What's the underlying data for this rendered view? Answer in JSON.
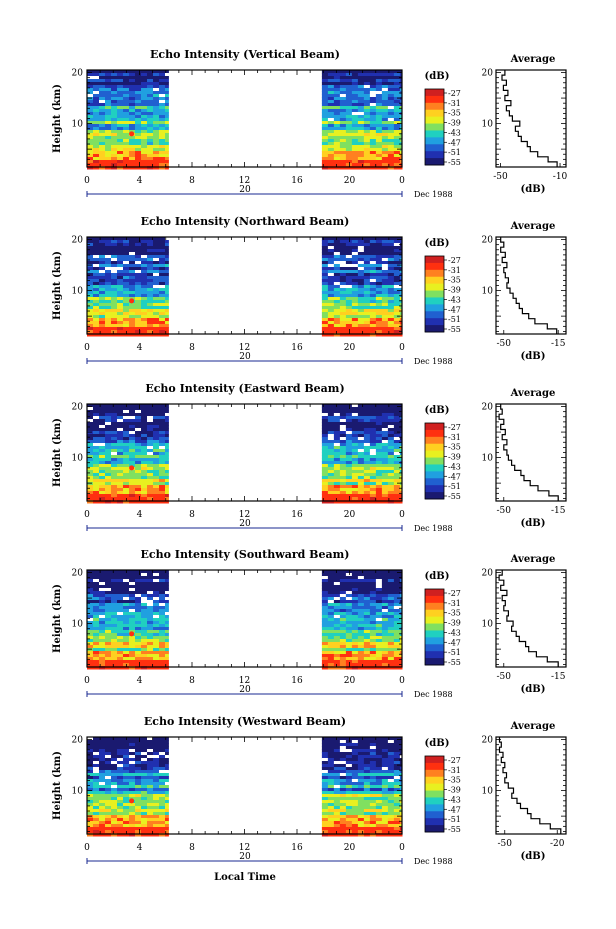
{
  "figure": {
    "xlabel": "Local Time",
    "date_label": "Dec 1988",
    "date_marker": "20",
    "colorbar_unit": "(dB)",
    "colorbar_ticks": [
      "-27",
      "-31",
      "-35",
      "-39",
      "-43",
      "-47",
      "-51",
      "-55"
    ],
    "colormap": [
      "#d02020",
      "#ff3010",
      "#ff8020",
      "#ffd020",
      "#e8f020",
      "#80e060",
      "#20d0c0",
      "#20a0e0",
      "#2060d0",
      "#2030b0",
      "#1a1a70"
    ],
    "missing_data_color": "#ffffff",
    "average_title": "Average",
    "average_xlabel": "(dB)"
  },
  "chart_data": [
    {
      "type": "heatmap",
      "title": "Echo Intensity (Vertical Beam)",
      "ylabel": "Height (km)",
      "xlabel": "Local Time",
      "x_ticks": [
        "0",
        "4",
        "8",
        "12",
        "16",
        "20",
        "0"
      ],
      "y_ticks": [
        "10",
        "20"
      ],
      "xlim": [
        0,
        24
      ],
      "ylim": [
        1.5,
        20.5
      ],
      "data_gap_hours": [
        6.2,
        17.9
      ],
      "colorbar": {
        "label": "(dB)",
        "ticks": [
          -27,
          -31,
          -35,
          -39,
          -43,
          -47,
          -51,
          -55
        ]
      },
      "average_profile": {
        "title": "Average",
        "xlabel": "(dB)",
        "x_ticks": [
          "-50",
          "-10"
        ],
        "xlim": [
          -53,
          -6
        ],
        "y_ticks": [
          "10",
          "20"
        ],
        "height_km": [
          2,
          3,
          4,
          5,
          6,
          7,
          8,
          9,
          10,
          11,
          12,
          13,
          14,
          15,
          16,
          17,
          18,
          19,
          20
        ],
        "values_db": [
          -12,
          -18,
          -25,
          -30,
          -32,
          -36,
          -38,
          -40,
          -37,
          -42,
          -44,
          -46,
          -43,
          -47,
          -45,
          -48,
          -46,
          -49,
          -47
        ]
      }
    },
    {
      "type": "heatmap",
      "title": "Echo Intensity (Northward Beam)",
      "ylabel": "Height (km)",
      "xlabel": "Local Time",
      "x_ticks": [
        "0",
        "4",
        "8",
        "12",
        "16",
        "20",
        "0"
      ],
      "y_ticks": [
        "10",
        "20"
      ],
      "xlim": [
        0,
        24
      ],
      "ylim": [
        1.5,
        20.5
      ],
      "data_gap_hours": [
        6.2,
        17.9
      ],
      "colorbar": {
        "label": "(dB)",
        "ticks": [
          -27,
          -31,
          -35,
          -39,
          -43,
          -47,
          -51,
          -55
        ]
      },
      "average_profile": {
        "title": "Average",
        "xlabel": "(dB)",
        "x_ticks": [
          "-50",
          "-15"
        ],
        "xlim": [
          -55,
          -10
        ],
        "y_ticks": [
          "10",
          "20"
        ],
        "height_km": [
          2,
          3,
          4,
          5,
          6,
          7,
          8,
          9,
          10,
          11,
          12,
          13,
          14,
          15,
          16,
          17,
          18,
          19,
          20
        ],
        "values_db": [
          -16,
          -22,
          -30,
          -34,
          -38,
          -40,
          -42,
          -44,
          -46,
          -48,
          -47,
          -49,
          -50,
          -48,
          -51,
          -49,
          -52,
          -50,
          -52
        ]
      }
    },
    {
      "type": "heatmap",
      "title": "Echo Intensity (Eastward Beam)",
      "ylabel": "Height (km)",
      "xlabel": "Local Time",
      "x_ticks": [
        "0",
        "4",
        "8",
        "12",
        "16",
        "20",
        "0"
      ],
      "y_ticks": [
        "10",
        "20"
      ],
      "xlim": [
        0,
        24
      ],
      "ylim": [
        1.5,
        20.5
      ],
      "data_gap_hours": [
        6.2,
        17.9
      ],
      "colorbar": {
        "label": "(dB)",
        "ticks": [
          -27,
          -31,
          -35,
          -39,
          -43,
          -47,
          -51,
          -55
        ]
      },
      "average_profile": {
        "title": "Average",
        "xlabel": "(dB)",
        "x_ticks": [
          "-50",
          "-15"
        ],
        "xlim": [
          -55,
          -10
        ],
        "y_ticks": [
          "10",
          "20"
        ],
        "height_km": [
          2,
          3,
          4,
          5,
          6,
          7,
          8,
          9,
          10,
          11,
          12,
          13,
          14,
          15,
          16,
          17,
          18,
          19,
          20
        ],
        "values_db": [
          -15,
          -21,
          -28,
          -33,
          -37,
          -39,
          -43,
          -45,
          -47,
          -48,
          -50,
          -48,
          -51,
          -49,
          -52,
          -50,
          -53,
          -51,
          -52
        ]
      }
    },
    {
      "type": "heatmap",
      "title": "Echo Intensity (Southward Beam)",
      "ylabel": "Height (km)",
      "xlabel": "Local Time",
      "x_ticks": [
        "0",
        "4",
        "8",
        "12",
        "16",
        "20",
        "0"
      ],
      "y_ticks": [
        "10",
        "20"
      ],
      "xlim": [
        0,
        24
      ],
      "ylim": [
        1.5,
        20.5
      ],
      "data_gap_hours": [
        6.2,
        17.9
      ],
      "colorbar": {
        "label": "(dB)",
        "ticks": [
          -27,
          -31,
          -35,
          -39,
          -43,
          -47,
          -51,
          -55
        ]
      },
      "average_profile": {
        "title": "Average",
        "xlabel": "(dB)",
        "x_ticks": [
          "-50",
          "-15"
        ],
        "xlim": [
          -55,
          -10
        ],
        "y_ticks": [
          "10",
          "20"
        ],
        "height_km": [
          2,
          3,
          4,
          5,
          6,
          7,
          8,
          9,
          10,
          11,
          12,
          13,
          14,
          15,
          16,
          17,
          18,
          19,
          20
        ],
        "values_db": [
          -15,
          -22,
          -29,
          -34,
          -36,
          -40,
          -42,
          -45,
          -44,
          -48,
          -47,
          -50,
          -49,
          -51,
          -48,
          -52,
          -50,
          -53,
          -51
        ]
      }
    },
    {
      "type": "heatmap",
      "title": "Echo Intensity (Westward Beam)",
      "ylabel": "Height (km)",
      "xlabel": "Local Time",
      "x_ticks": [
        "0",
        "4",
        "8",
        "12",
        "16",
        "20",
        "0"
      ],
      "y_ticks": [
        "10",
        "20"
      ],
      "xlim": [
        0,
        24
      ],
      "ylim": [
        1.5,
        20.5
      ],
      "data_gap_hours": [
        6.2,
        17.9
      ],
      "colorbar": {
        "label": "(dB)",
        "ticks": [
          -27,
          -31,
          -35,
          -39,
          -43,
          -47,
          -51,
          -55
        ]
      },
      "average_profile": {
        "title": "Average",
        "xlabel": "(dB)",
        "x_ticks": [
          "-50",
          "-20"
        ],
        "xlim": [
          -55,
          -15
        ],
        "y_ticks": [
          "10",
          "20"
        ],
        "height_km": [
          2,
          3,
          4,
          5,
          6,
          7,
          8,
          9,
          10,
          11,
          12,
          13,
          14,
          15,
          16,
          17,
          18,
          19,
          20
        ],
        "values_db": [
          -18,
          -24,
          -30,
          -35,
          -37,
          -41,
          -43,
          -46,
          -45,
          -48,
          -50,
          -49,
          -51,
          -50,
          -52,
          -51,
          -53,
          -52,
          -53
        ]
      }
    }
  ]
}
